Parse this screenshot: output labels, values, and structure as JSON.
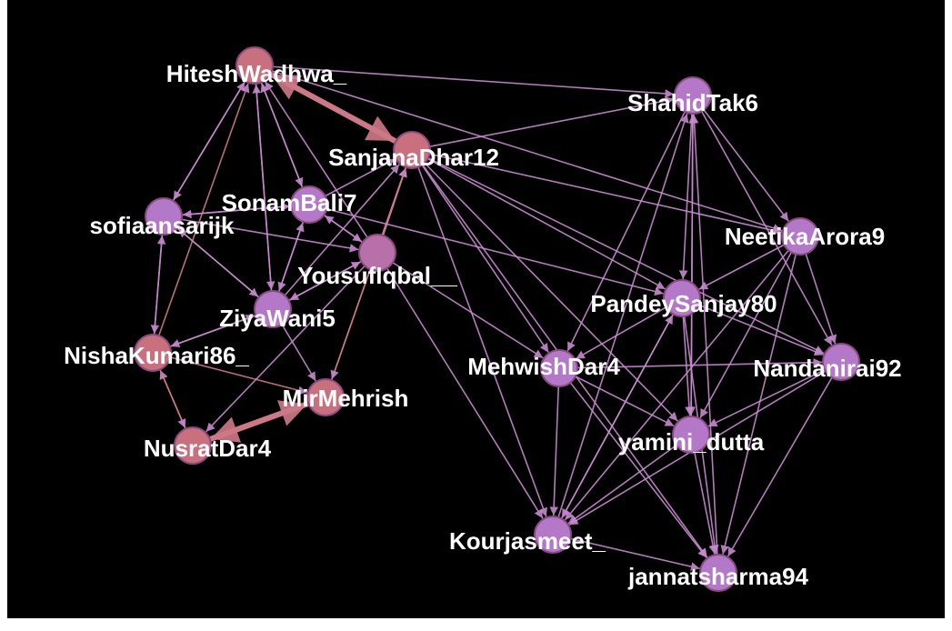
{
  "nodes": [
    {
      "label": "HiteshWadhwa_"
    },
    {
      "label": "SanjanaDhar12"
    },
    {
      "label": "SonamBali7"
    },
    {
      "label": "sofiaansarijk"
    },
    {
      "label": "YousufIqbal__"
    },
    {
      "label": "ZiyaWani5"
    },
    {
      "label": "NishaKumari86_"
    },
    {
      "label": "MirMehrish"
    },
    {
      "label": "NusratDar4"
    },
    {
      "label": "ShahidTak6"
    },
    {
      "label": "NeetikaArora9"
    },
    {
      "label": "PandeySanjay80"
    },
    {
      "label": "MehwishDar4"
    },
    {
      "label": "Nandanirai92"
    },
    {
      "label": "yamini_dutta"
    },
    {
      "label": "Kourjasmeet_"
    },
    {
      "label": "jannatsharma94"
    }
  ]
}
